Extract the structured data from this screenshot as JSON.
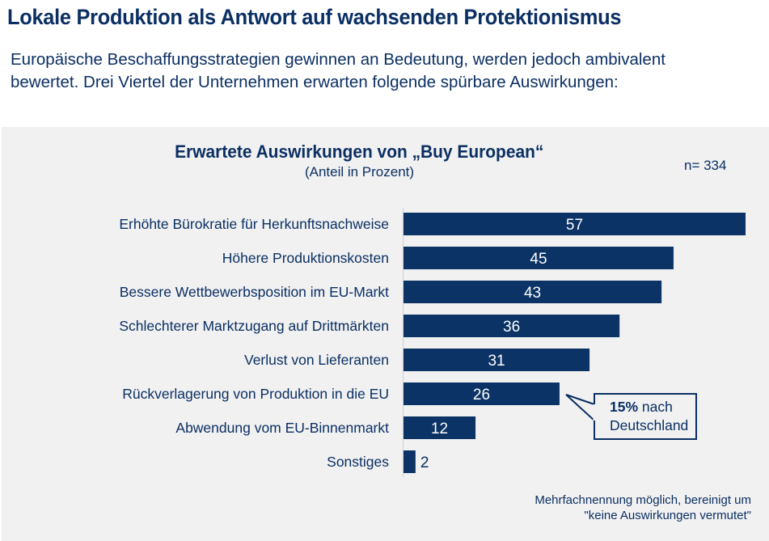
{
  "header": {
    "title": "Lokale Produktion als Antwort auf wachsenden Protektionismus",
    "intro_line1": "Europäische Beschaffungsstrategien gewinnen an Bedeutung, werden jedoch ambivalent",
    "intro_line2": "bewertet. Drei Viertel der Unternehmen erwarten folgende spürbare Auswirkungen:"
  },
  "colors": {
    "bar": "#0b3366",
    "text": "#0b2f63",
    "panel": "#f1f1f1",
    "value_label_inside": "#ffffff"
  },
  "chart_data": {
    "type": "bar",
    "orientation": "horizontal",
    "title": "Erwartete Auswirkungen von „Buy European“",
    "subtitle": "(Anteil in Prozent)",
    "sample_size": "n= 334",
    "xlabel": "",
    "ylabel": "",
    "xlim": [
      0,
      57
    ],
    "grid": false,
    "categories": [
      "Erhöhte Bürokratie für Herkunftsnachweise",
      "Höhere Produktionskosten",
      "Bessere Wettbewerbsposition im EU-Markt",
      "Schlechterer Marktzugang auf Drittmärkten",
      "Verlust von Lieferanten",
      "Rückverlagerung von Produktion in die EU",
      "Abwendung vom EU-Binnenmarkt",
      "Sonstiges"
    ],
    "values": [
      57,
      45,
      43,
      36,
      31,
      26,
      12,
      2
    ],
    "unit": "%",
    "annotations": [
      {
        "target_category": "Rückverlagerung von Produktion in die EU",
        "bold": "15%",
        "text": " nach",
        "line2": "Deutschland"
      }
    ],
    "footnote_line1": "Mehrfachnennung möglich, bereinigt um",
    "footnote_line2": "\"keine Auswirkungen vermutet\""
  }
}
